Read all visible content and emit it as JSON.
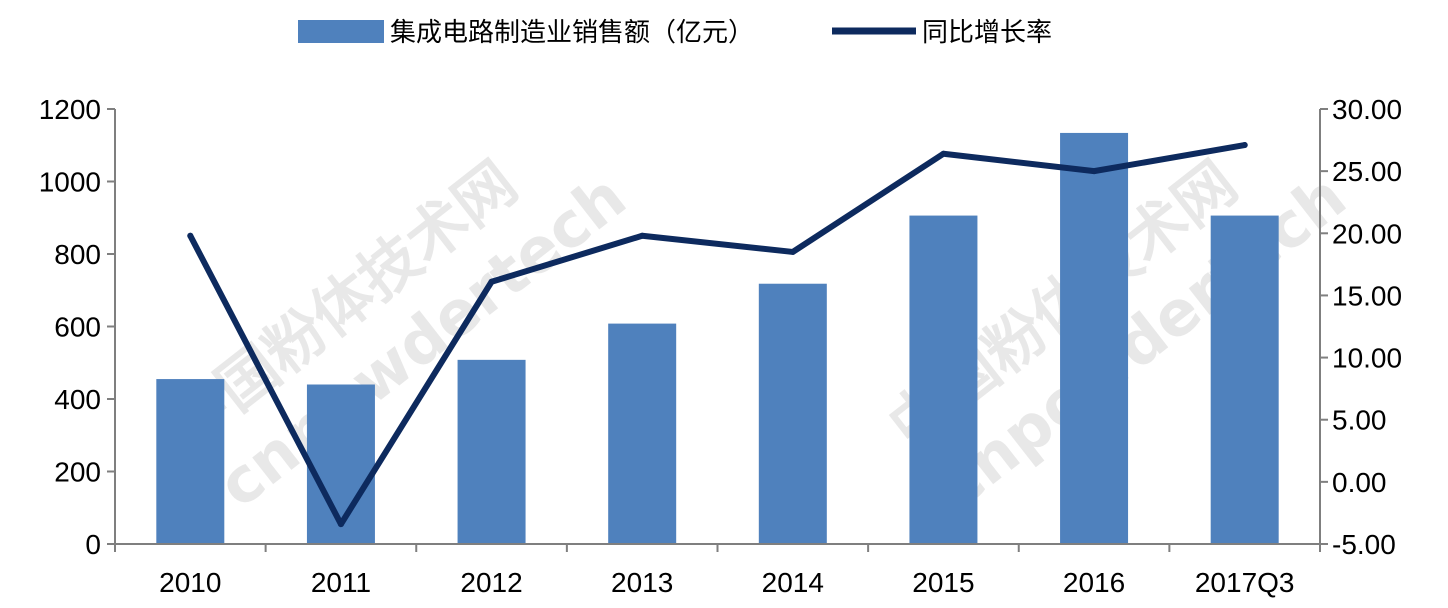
{
  "chart_data": {
    "type": "bar",
    "categories": [
      "2010",
      "2011",
      "2012",
      "2013",
      "2014",
      "2015",
      "2016",
      "2017Q3"
    ],
    "series": [
      {
        "name": "集成电路制造业销售额（亿元）",
        "type": "bar",
        "axis": "left",
        "color": "#4f81bd",
        "values": [
          455,
          440,
          508,
          608,
          718,
          906,
          1134,
          906
        ]
      },
      {
        "name": "同比增长率",
        "type": "line",
        "axis": "right",
        "color": "#0d2a5e",
        "values": [
          19.8,
          -3.4,
          16.1,
          19.8,
          18.5,
          26.4,
          25.0,
          27.1
        ]
      }
    ],
    "y_left": {
      "min": 0,
      "max": 1200,
      "step": 200,
      "tick_labels": [
        "0",
        "200",
        "400",
        "600",
        "800",
        "1000",
        "1200"
      ]
    },
    "y_right": {
      "min": -5,
      "max": 30,
      "step": 5,
      "tick_labels": [
        "-5.00",
        "0.00",
        "5.00",
        "10.00",
        "15.00",
        "20.00",
        "25.00",
        "30.00"
      ]
    },
    "legend_position": "top-center",
    "grid": false
  },
  "watermark": {
    "cn": "中国粉体技术网",
    "en": "cnpowdertech"
  }
}
